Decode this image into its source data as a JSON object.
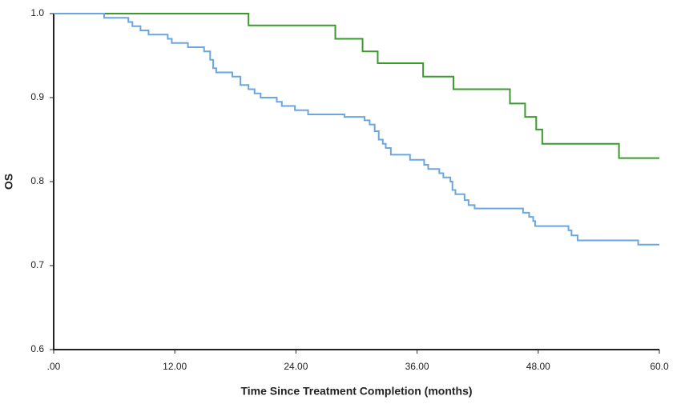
{
  "chart_data": {
    "type": "step",
    "xlabel": "Time Since Treatment Completion (months)",
    "ylabel": "OS",
    "xlim": [
      0,
      60
    ],
    "ylim": [
      0.6,
      1.0
    ],
    "xticks": [
      {
        "value": 0,
        "label": ".00"
      },
      {
        "value": 12,
        "label": "12.00"
      },
      {
        "value": 24,
        "label": "24.00"
      },
      {
        "value": 36,
        "label": "36.00"
      },
      {
        "value": 48,
        "label": "48.00"
      },
      {
        "value": 60,
        "label": "60.0"
      }
    ],
    "yticks": [
      0.6,
      0.7,
      0.8,
      0.9,
      {
        "value": 1,
        "label": "1.0"
      }
    ],
    "series": [
      {
        "color": "#3a9a2e",
        "x": [
          0,
          19.3,
          27.9,
          30.6,
          32.1,
          36.6,
          39.6,
          45.2,
          46.7,
          47.8,
          48.4,
          56.0,
          60
        ],
        "values": [
          1.0,
          0.986,
          0.97,
          0.955,
          0.941,
          0.925,
          0.91,
          0.893,
          0.877,
          0.862,
          0.845,
          0.828,
          0.828
        ]
      },
      {
        "color": "#6aa6e0",
        "x": [
          0,
          5.0,
          7.4,
          7.8,
          8.6,
          9.4,
          11.3,
          11.7,
          13.3,
          14.9,
          15.5,
          15.8,
          16.1,
          17.7,
          18.5,
          19.3,
          19.9,
          20.5,
          22.1,
          22.6,
          23.9,
          25.2,
          28.8,
          30.8,
          31.3,
          31.8,
          32.2,
          32.6,
          32.9,
          33.4,
          35.3,
          36.7,
          37.1,
          38.2,
          38.6,
          39.3,
          39.5,
          39.8,
          40.7,
          41.1,
          41.7,
          46.5,
          47.1,
          47.5,
          47.7,
          51.0,
          51.3,
          51.9,
          57.9,
          60
        ],
        "values": [
          1.0,
          0.995,
          0.99,
          0.985,
          0.98,
          0.975,
          0.97,
          0.965,
          0.96,
          0.955,
          0.945,
          0.935,
          0.93,
          0.925,
          0.915,
          0.91,
          0.905,
          0.9,
          0.895,
          0.89,
          0.885,
          0.88,
          0.877,
          0.873,
          0.868,
          0.86,
          0.85,
          0.845,
          0.84,
          0.832,
          0.826,
          0.82,
          0.815,
          0.81,
          0.805,
          0.8,
          0.79,
          0.785,
          0.778,
          0.772,
          0.768,
          0.763,
          0.758,
          0.753,
          0.747,
          0.742,
          0.736,
          0.73,
          0.725,
          0.725
        ]
      }
    ]
  }
}
